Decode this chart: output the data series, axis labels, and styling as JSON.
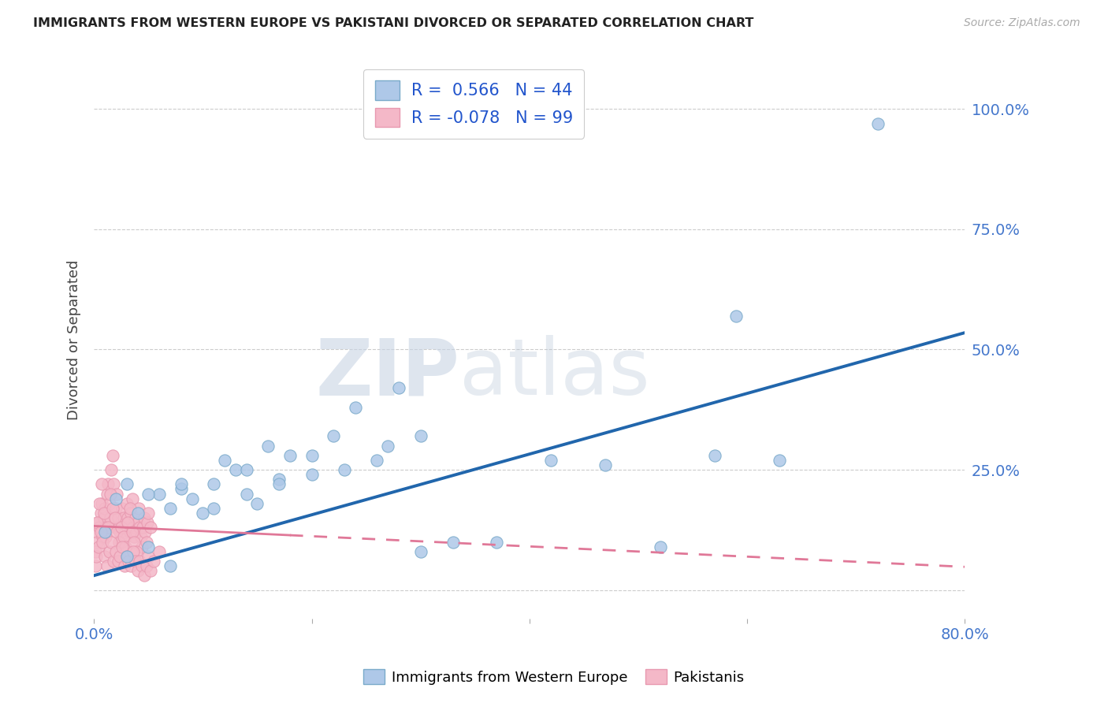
{
  "title": "IMMIGRANTS FROM WESTERN EUROPE VS PAKISTANI DIVORCED OR SEPARATED CORRELATION CHART",
  "source": "Source: ZipAtlas.com",
  "ylabel": "Divorced or Separated",
  "blue_R": "0.566",
  "blue_N": "44",
  "pink_R": "-0.078",
  "pink_N": "99",
  "blue_color": "#aec8e8",
  "pink_color": "#f4b8c8",
  "blue_edge": "#7aaaca",
  "pink_edge": "#e899b0",
  "blue_line_color": "#2166ac",
  "pink_line_color": "#e07898",
  "xlim": [
    0.0,
    0.8
  ],
  "ylim": [
    -0.06,
    1.1
  ],
  "yticks": [
    0.0,
    0.25,
    0.5,
    0.75,
    1.0
  ],
  "ytick_labels": [
    "",
    "25.0%",
    "50.0%",
    "75.0%",
    "100.0%"
  ],
  "blue_trend_x0": 0.0,
  "blue_trend_y0": 0.03,
  "blue_trend_x1": 0.8,
  "blue_trend_y1": 0.535,
  "pink_trend_x0": 0.0,
  "pink_trend_y0": 0.133,
  "pink_trend_x1": 0.8,
  "pink_trend_y1": 0.048,
  "blue_scatter_x": [
    0.01,
    0.02,
    0.03,
    0.03,
    0.04,
    0.05,
    0.06,
    0.07,
    0.07,
    0.08,
    0.09,
    0.1,
    0.11,
    0.12,
    0.13,
    0.14,
    0.15,
    0.16,
    0.17,
    0.18,
    0.2,
    0.22,
    0.24,
    0.26,
    0.28,
    0.3,
    0.05,
    0.08,
    0.11,
    0.14,
    0.17,
    0.2,
    0.23,
    0.27,
    0.3,
    0.33,
    0.37,
    0.42,
    0.47,
    0.52,
    0.57,
    0.63,
    0.72,
    0.59
  ],
  "blue_scatter_y": [
    0.12,
    0.19,
    0.07,
    0.22,
    0.16,
    0.09,
    0.2,
    0.05,
    0.17,
    0.21,
    0.19,
    0.16,
    0.22,
    0.27,
    0.25,
    0.2,
    0.18,
    0.3,
    0.23,
    0.28,
    0.24,
    0.32,
    0.38,
    0.27,
    0.42,
    0.32,
    0.2,
    0.22,
    0.17,
    0.25,
    0.22,
    0.28,
    0.25,
    0.3,
    0.08,
    0.1,
    0.1,
    0.27,
    0.26,
    0.09,
    0.28,
    0.27,
    0.97,
    0.57
  ],
  "pink_scatter_x": [
    0.002,
    0.003,
    0.004,
    0.005,
    0.006,
    0.007,
    0.008,
    0.009,
    0.01,
    0.011,
    0.012,
    0.013,
    0.014,
    0.015,
    0.016,
    0.017,
    0.018,
    0.019,
    0.02,
    0.021,
    0.022,
    0.023,
    0.024,
    0.025,
    0.026,
    0.027,
    0.028,
    0.029,
    0.03,
    0.031,
    0.032,
    0.033,
    0.034,
    0.035,
    0.036,
    0.037,
    0.038,
    0.039,
    0.04,
    0.041,
    0.042,
    0.043,
    0.044,
    0.045,
    0.046,
    0.047,
    0.048,
    0.049,
    0.05,
    0.052,
    0.001,
    0.003,
    0.005,
    0.007,
    0.009,
    0.011,
    0.013,
    0.015,
    0.017,
    0.019,
    0.021,
    0.023,
    0.025,
    0.027,
    0.029,
    0.031,
    0.033,
    0.035,
    0.037,
    0.039,
    0.001,
    0.002,
    0.004,
    0.006,
    0.008,
    0.01,
    0.012,
    0.014,
    0.016,
    0.018,
    0.02,
    0.022,
    0.024,
    0.026,
    0.028,
    0.03,
    0.032,
    0.034,
    0.036,
    0.038,
    0.04,
    0.042,
    0.044,
    0.046,
    0.048,
    0.05,
    0.052,
    0.055,
    0.06
  ],
  "pink_scatter_y": [
    0.12,
    0.1,
    0.14,
    0.13,
    0.16,
    0.18,
    0.11,
    0.15,
    0.17,
    0.13,
    0.2,
    0.22,
    0.18,
    0.15,
    0.25,
    0.28,
    0.22,
    0.13,
    0.17,
    0.2,
    0.15,
    0.13,
    0.12,
    0.1,
    0.17,
    0.15,
    0.13,
    0.11,
    0.18,
    0.15,
    0.14,
    0.12,
    0.16,
    0.19,
    0.13,
    0.11,
    0.15,
    0.12,
    0.14,
    0.17,
    0.13,
    0.11,
    0.09,
    0.13,
    0.15,
    0.12,
    0.1,
    0.14,
    0.16,
    0.13,
    0.08,
    0.14,
    0.18,
    0.22,
    0.16,
    0.11,
    0.13,
    0.2,
    0.17,
    0.15,
    0.12,
    0.1,
    0.13,
    0.11,
    0.09,
    0.14,
    0.17,
    0.12,
    0.1,
    0.08,
    0.05,
    0.07,
    0.09,
    0.12,
    0.1,
    0.07,
    0.05,
    0.08,
    0.1,
    0.06,
    0.08,
    0.06,
    0.07,
    0.09,
    0.05,
    0.07,
    0.06,
    0.05,
    0.08,
    0.06,
    0.04,
    0.06,
    0.05,
    0.03,
    0.05,
    0.07,
    0.04,
    0.06,
    0.08
  ]
}
